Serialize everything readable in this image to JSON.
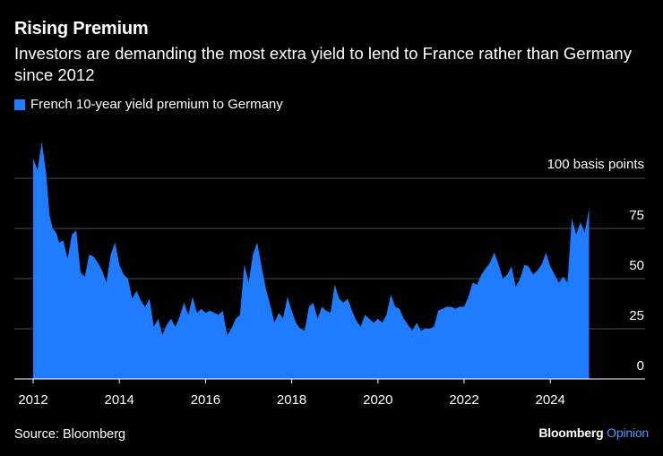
{
  "title": "Rising Premium",
  "subtitle": "Investors are demanding the most extra yield to lend to France rather than Germany since 2012",
  "legend": "French 10-year yield premium to Germany",
  "source": "Source: Bloomberg",
  "brand": {
    "name": "Bloomberg",
    "suffix": "Opinion"
  },
  "colors": {
    "area": "#1f7bff",
    "grid": "#4a4a4a",
    "background": "#000000",
    "brand_accent": "#4c97ff"
  },
  "chart_data": {
    "type": "area",
    "title": "Rising Premium",
    "series_name": "French 10-year yield premium to Germany",
    "unit_label": "100 basis points",
    "ylim": [
      0,
      100
    ],
    "yticks": [
      0,
      25,
      50,
      75,
      100
    ],
    "ytick_labels": [
      "0",
      "25",
      "50",
      "75",
      "100 basis points"
    ],
    "xlim": [
      2012,
      2025.6
    ],
    "xticks": [
      2012,
      2014,
      2016,
      2018,
      2020,
      2022,
      2024
    ],
    "xtick_labels": [
      "2012",
      "2014",
      "2016",
      "2018",
      "2020",
      "2022",
      "2024"
    ],
    "x": [
      2012.0,
      2012.1,
      2012.2,
      2012.3,
      2012.38,
      2012.45,
      2012.5,
      2012.55,
      2012.6,
      2012.7,
      2012.8,
      2012.9,
      2013.0,
      2013.1,
      2013.2,
      2013.3,
      2013.4,
      2013.5,
      2013.6,
      2013.7,
      2013.8,
      2013.9,
      2014.0,
      2014.1,
      2014.2,
      2014.3,
      2014.4,
      2014.5,
      2014.6,
      2014.7,
      2014.8,
      2014.9,
      2015.0,
      2015.1,
      2015.2,
      2015.3,
      2015.4,
      2015.5,
      2015.6,
      2015.7,
      2015.8,
      2015.9,
      2016.0,
      2016.1,
      2016.2,
      2016.3,
      2016.4,
      2016.5,
      2016.6,
      2016.7,
      2016.8,
      2016.9,
      2017.0,
      2017.1,
      2017.2,
      2017.3,
      2017.4,
      2017.5,
      2017.6,
      2017.7,
      2017.8,
      2017.9,
      2018.0,
      2018.1,
      2018.2,
      2018.3,
      2018.4,
      2018.5,
      2018.6,
      2018.7,
      2018.8,
      2018.9,
      2019.0,
      2019.1,
      2019.2,
      2019.3,
      2019.4,
      2019.5,
      2019.6,
      2019.7,
      2019.8,
      2019.9,
      2020.0,
      2020.1,
      2020.2,
      2020.3,
      2020.4,
      2020.5,
      2020.6,
      2020.7,
      2020.8,
      2020.9,
      2021.0,
      2021.1,
      2021.2,
      2021.3,
      2021.4,
      2021.5,
      2021.6,
      2021.7,
      2021.8,
      2021.9,
      2022.0,
      2022.1,
      2022.2,
      2022.3,
      2022.4,
      2022.5,
      2022.6,
      2022.7,
      2022.8,
      2022.9,
      2023.0,
      2023.1,
      2023.2,
      2023.3,
      2023.4,
      2023.5,
      2023.6,
      2023.7,
      2023.8,
      2023.9,
      2024.0,
      2024.1,
      2024.2,
      2024.3,
      2024.4,
      2024.5,
      2024.6,
      2024.7,
      2024.8,
      2024.9
    ],
    "values": [
      110,
      104,
      118,
      103,
      82,
      75,
      74,
      72,
      68,
      69,
      60,
      72,
      74,
      53,
      51,
      62,
      61,
      58,
      54,
      48,
      62,
      68,
      57,
      52,
      50,
      40,
      44,
      39,
      36,
      40,
      26,
      30,
      22,
      27,
      30,
      26,
      31,
      38,
      32,
      41,
      33,
      35,
      33,
      34,
      33,
      32,
      34,
      22,
      25,
      30,
      32,
      57,
      48,
      62,
      68,
      56,
      45,
      37,
      28,
      33,
      30,
      41,
      34,
      28,
      25,
      24,
      36,
      38,
      30,
      36,
      34,
      33,
      47,
      40,
      38,
      40,
      34,
      29,
      26,
      32,
      30,
      28,
      30,
      28,
      32,
      42,
      36,
      35,
      30,
      27,
      24,
      28,
      24,
      25,
      25,
      26,
      34,
      35,
      36,
      36,
      35,
      36,
      36,
      41,
      48,
      47,
      52,
      55,
      58,
      63,
      57,
      50,
      52,
      56,
      46,
      50,
      57,
      56,
      52,
      54,
      57,
      63,
      56,
      52,
      48,
      51,
      48,
      80,
      72,
      78,
      73,
      85
    ]
  }
}
